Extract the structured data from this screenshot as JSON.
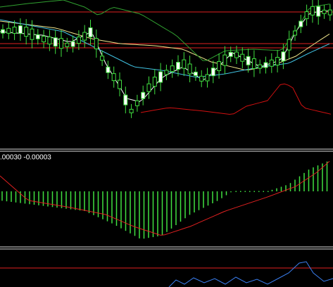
{
  "indicator_label": ".00030 -0.00003"
}
